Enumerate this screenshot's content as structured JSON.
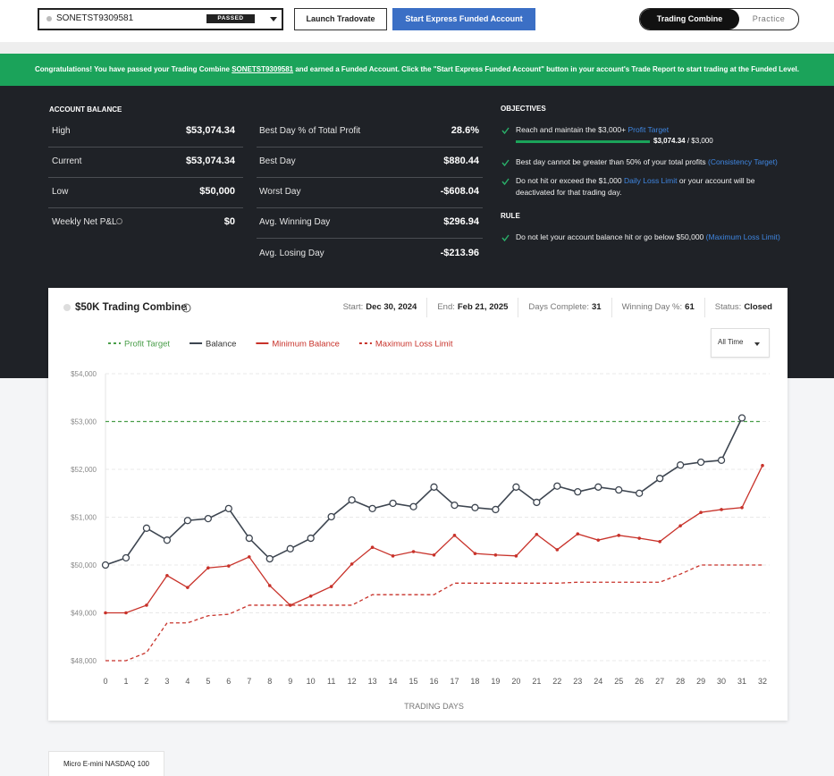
{
  "top_bar": {
    "account": "SONETST9309581",
    "status_badge": "PASSED",
    "launch_button": "Launch Tradovate",
    "funded_button": "Start Express Funded Account",
    "tabs": [
      "Trading Combine",
      "Practice"
    ]
  },
  "banner": {
    "text_before": "Congratulations! You have passed your Trading Combine ",
    "account_link": "SONETST9309581",
    "text_after": " and earned a Funded Account. Click the \"Start Express Funded Account\" button in your account's Trade Report to start trading at the Funded Level."
  },
  "account_balance": {
    "title": "ACCOUNT BALANCE",
    "rows": [
      {
        "label": "High",
        "value": "$53,074.34"
      },
      {
        "label": "Current",
        "value": "$53,074.34"
      },
      {
        "label": "Low",
        "value": "$50,000"
      },
      {
        "label": "Weekly Net P&L",
        "value": "$0"
      }
    ]
  },
  "day_stats": {
    "rows": [
      {
        "label": "Best Day % of Total Profit",
        "value": "28.6%"
      },
      {
        "label": "Best Day",
        "value": "$880.44"
      },
      {
        "label": "Worst Day",
        "value": "-$608.04"
      },
      {
        "label": "Avg. Winning Day",
        "value": "$296.94"
      },
      {
        "label": "Avg. Losing Day",
        "value": "-$213.96"
      }
    ]
  },
  "objectives": {
    "title": "OBJECTIVES",
    "items": [
      {
        "text": "Reach and maintain the $3,000+ ",
        "link": "Profit Target",
        "progress_value": "$3,074.34",
        "progress_target": " / $3,000"
      },
      {
        "text": "Best day cannot be greater than 50% of your total profits ",
        "link": "(Consistency Target)"
      },
      {
        "text": "Do not hit or exceed the $1,000 ",
        "link": "Daily Loss Limit",
        "text_after": " or your account will be deactivated for that trading day."
      }
    ]
  },
  "rule": {
    "title": "RULE",
    "items": [
      {
        "text": "Do not let your account balance hit or go below $50,000 ",
        "link": "(Maximum Loss Limit)"
      }
    ]
  },
  "chart_header": {
    "title": "$50K Trading Combine",
    "stats": [
      {
        "label": "Start:",
        "value": "Dec 30, 2024"
      },
      {
        "label": "End:",
        "value": "Feb 21, 2025"
      },
      {
        "label": "Days Complete:",
        "value": "31"
      },
      {
        "label": "Winning Day %:",
        "value": "61"
      },
      {
        "label": "Status:",
        "value": "Closed"
      }
    ],
    "range": "All Time"
  },
  "chart_data": {
    "type": "line",
    "x": [
      0,
      1,
      2,
      3,
      4,
      5,
      6,
      7,
      8,
      9,
      10,
      11,
      12,
      13,
      14,
      15,
      16,
      17,
      18,
      19,
      20,
      21,
      22,
      23,
      24,
      25,
      26,
      27,
      28,
      29,
      30,
      31,
      32
    ],
    "xlim": [
      0,
      32
    ],
    "xticks": [
      0,
      1,
      2,
      3,
      4,
      5,
      6,
      7,
      8,
      9,
      10,
      11,
      12,
      13,
      14,
      15,
      16,
      17,
      18,
      19,
      20,
      21,
      22,
      23,
      24,
      25,
      26,
      27,
      28,
      29,
      30,
      31,
      32
    ],
    "x_label": "TRADING DAYS",
    "ylim": [
      48000,
      54000
    ],
    "yticks": [
      {
        "value": 48000,
        "label": "$48,000"
      },
      {
        "value": 49000,
        "label": "$49,000"
      },
      {
        "value": 50000,
        "label": "$50,000"
      },
      {
        "value": 51000,
        "label": "$51,000"
      },
      {
        "value": 52000,
        "label": "$52,000"
      },
      {
        "value": 53000,
        "label": "$53,000"
      },
      {
        "value": 54000,
        "label": "$54,000"
      }
    ],
    "grid": true,
    "series": [
      {
        "name": "Profit Target",
        "color": "#4a9e4a",
        "dashed": true,
        "marker": "none",
        "values": [
          53000,
          53000,
          53000,
          53000,
          53000,
          53000,
          53000,
          53000,
          53000,
          53000,
          53000,
          53000,
          53000,
          53000,
          53000,
          53000,
          53000,
          53000,
          53000,
          53000,
          53000,
          53000,
          53000,
          53000,
          53000,
          53000,
          53000,
          53000,
          53000,
          53000,
          53000,
          53000,
          53000
        ]
      },
      {
        "name": "Balance",
        "color": "#3d4550",
        "dashed": false,
        "marker": "circle",
        "values": [
          50000,
          50150,
          50770,
          50520,
          50930,
          50970,
          51180,
          50560,
          50130,
          50340,
          50560,
          51010,
          51360,
          51180,
          51290,
          51220,
          51630,
          51250,
          51200,
          51160,
          51630,
          51310,
          51650,
          51530,
          51630,
          51570,
          51500,
          51810,
          52090,
          52150,
          52190,
          53074.34,
          null
        ]
      },
      {
        "name": "Minimum Balance",
        "color": "#c8322a",
        "dashed": false,
        "marker": "dot",
        "values": [
          49000,
          49000,
          49160,
          49780,
          49530,
          49940,
          49980,
          50170,
          49570,
          49160,
          49350,
          49550,
          50020,
          50370,
          50190,
          50280,
          50210,
          50620,
          50240,
          50210,
          50190,
          50640,
          50320,
          50650,
          50520,
          50620,
          50560,
          50490,
          50820,
          51100,
          51160,
          51200,
          52080
        ]
      },
      {
        "name": "Maximum Loss Limit",
        "color": "#c8322a",
        "dashed": true,
        "marker": "none",
        "values": [
          48000,
          48000,
          48170,
          48790,
          48790,
          48940,
          48970,
          49160,
          49160,
          49160,
          49160,
          49160,
          49160,
          49380,
          49380,
          49380,
          49380,
          49620,
          49620,
          49620,
          49620,
          49620,
          49620,
          49640,
          49640,
          49640,
          49640,
          49640,
          49810,
          50000,
          50000,
          50000,
          50000
        ]
      }
    ]
  },
  "footer_tab": "Micro E-mini NASDAQ 100"
}
